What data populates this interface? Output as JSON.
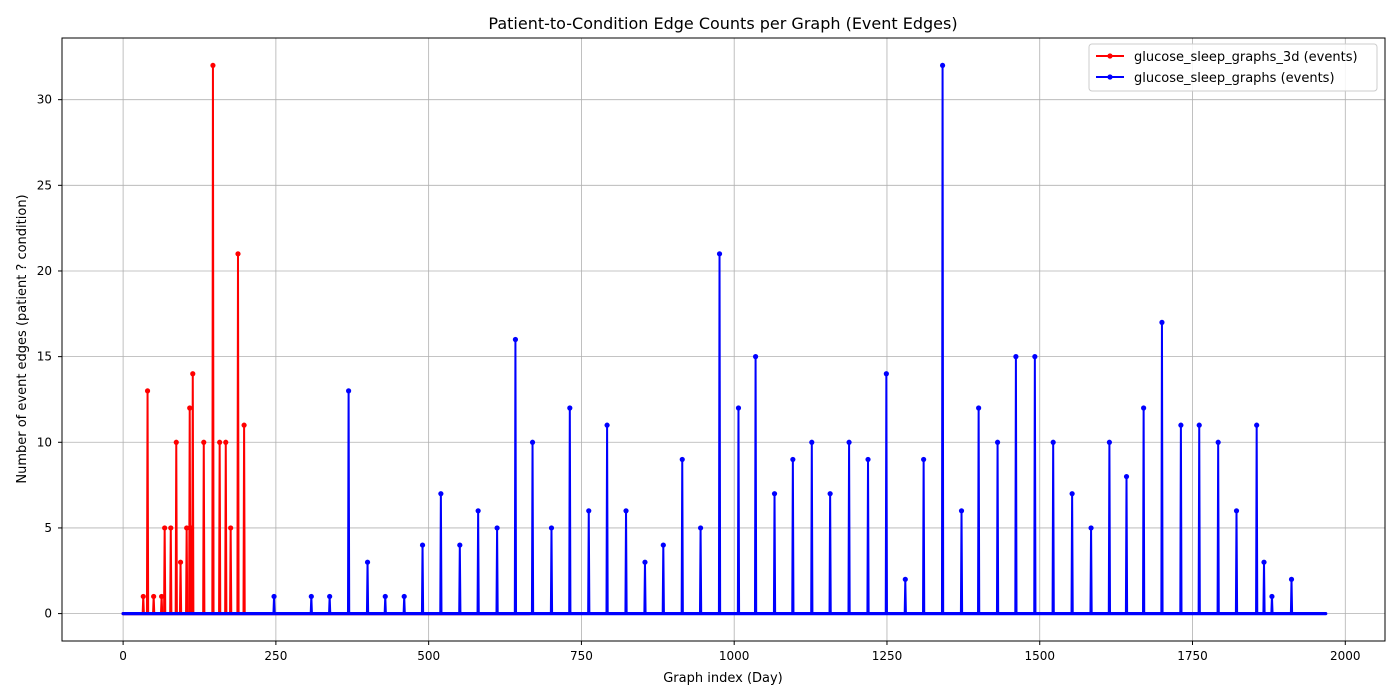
{
  "chart_data": {
    "type": "line",
    "title": "Patient-to-Condition Edge Counts per Graph (Event Edges)",
    "xlabel": "Graph index (Day)",
    "ylabel": "Number of event edges (patient ? condition)",
    "xlim": [
      -100,
      2065
    ],
    "ylim": [
      -1.6,
      33.6
    ],
    "xticks": [
      0,
      250,
      500,
      750,
      1000,
      1250,
      1500,
      1750,
      2000
    ],
    "yticks": [
      0,
      5,
      10,
      15,
      20,
      25,
      30
    ],
    "grid": true,
    "legend_position": "top-right",
    "series": [
      {
        "name": "glucose_sleep_graphs_3d (events)",
        "color": "#ff0000",
        "x_range": [
          0,
          665
        ],
        "spikes": [
          {
            "x": 33,
            "y": 1
          },
          {
            "x": 40,
            "y": 13
          },
          {
            "x": 50,
            "y": 1
          },
          {
            "x": 63,
            "y": 1
          },
          {
            "x": 68,
            "y": 5
          },
          {
            "x": 78,
            "y": 5
          },
          {
            "x": 87,
            "y": 10
          },
          {
            "x": 94,
            "y": 3
          },
          {
            "x": 104,
            "y": 5
          },
          {
            "x": 109,
            "y": 12
          },
          {
            "x": 112,
            "y": 5
          },
          {
            "x": 114,
            "y": 14
          },
          {
            "x": 132,
            "y": 10
          },
          {
            "x": 147,
            "y": 32
          },
          {
            "x": 158,
            "y": 10
          },
          {
            "x": 168,
            "y": 10
          },
          {
            "x": 176,
            "y": 5
          },
          {
            "x": 188,
            "y": 21
          },
          {
            "x": 198,
            "y": 11
          }
        ]
      },
      {
        "name": "glucose_sleep_graphs (events)",
        "color": "#0000ff",
        "x_range": [
          0,
          1968
        ],
        "spikes": [
          {
            "x": 247,
            "y": 1
          },
          {
            "x": 308,
            "y": 1
          },
          {
            "x": 338,
            "y": 1
          },
          {
            "x": 369,
            "y": 13
          },
          {
            "x": 400,
            "y": 3
          },
          {
            "x": 429,
            "y": 1
          },
          {
            "x": 460,
            "y": 1
          },
          {
            "x": 490,
            "y": 4
          },
          {
            "x": 520,
            "y": 7
          },
          {
            "x": 551,
            "y": 4
          },
          {
            "x": 581,
            "y": 6
          },
          {
            "x": 612,
            "y": 5
          },
          {
            "x": 642,
            "y": 16
          },
          {
            "x": 670,
            "y": 10
          },
          {
            "x": 701,
            "y": 5
          },
          {
            "x": 731,
            "y": 12
          },
          {
            "x": 762,
            "y": 6
          },
          {
            "x": 792,
            "y": 11
          },
          {
            "x": 823,
            "y": 6
          },
          {
            "x": 854,
            "y": 3
          },
          {
            "x": 884,
            "y": 4
          },
          {
            "x": 915,
            "y": 9
          },
          {
            "x": 945,
            "y": 5
          },
          {
            "x": 976,
            "y": 21
          },
          {
            "x": 1007,
            "y": 12
          },
          {
            "x": 1035,
            "y": 15
          },
          {
            "x": 1066,
            "y": 7
          },
          {
            "x": 1096,
            "y": 9
          },
          {
            "x": 1127,
            "y": 10
          },
          {
            "x": 1157,
            "y": 7
          },
          {
            "x": 1188,
            "y": 10
          },
          {
            "x": 1219,
            "y": 9
          },
          {
            "x": 1249,
            "y": 14
          },
          {
            "x": 1280,
            "y": 2
          },
          {
            "x": 1310,
            "y": 9
          },
          {
            "x": 1341,
            "y": 32
          },
          {
            "x": 1372,
            "y": 6
          },
          {
            "x": 1400,
            "y": 12
          },
          {
            "x": 1431,
            "y": 10
          },
          {
            "x": 1461,
            "y": 15
          },
          {
            "x": 1492,
            "y": 15
          },
          {
            "x": 1522,
            "y": 10
          },
          {
            "x": 1553,
            "y": 7
          },
          {
            "x": 1584,
            "y": 5
          },
          {
            "x": 1614,
            "y": 10
          },
          {
            "x": 1642,
            "y": 8
          },
          {
            "x": 1670,
            "y": 12
          },
          {
            "x": 1700,
            "y": 17
          },
          {
            "x": 1731,
            "y": 11
          },
          {
            "x": 1761,
            "y": 11
          },
          {
            "x": 1792,
            "y": 10
          },
          {
            "x": 1822,
            "y": 6
          },
          {
            "x": 1855,
            "y": 11
          },
          {
            "x": 1867,
            "y": 3
          },
          {
            "x": 1880,
            "y": 1
          },
          {
            "x": 1912,
            "y": 2
          }
        ]
      }
    ]
  }
}
